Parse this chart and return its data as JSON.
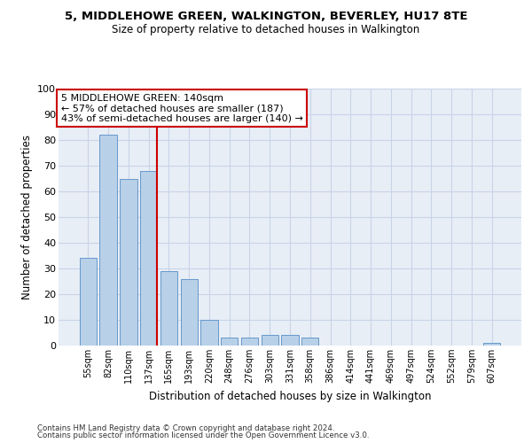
{
  "title": "5, MIDDLEHOWE GREEN, WALKINGTON, BEVERLEY, HU17 8TE",
  "subtitle": "Size of property relative to detached houses in Walkington",
  "xlabel": "Distribution of detached houses by size in Walkington",
  "ylabel": "Number of detached properties",
  "bar_labels": [
    "55sqm",
    "82sqm",
    "110sqm",
    "137sqm",
    "165sqm",
    "193sqm",
    "220sqm",
    "248sqm",
    "276sqm",
    "303sqm",
    "331sqm",
    "358sqm",
    "386sqm",
    "414sqm",
    "441sqm",
    "469sqm",
    "497sqm",
    "524sqm",
    "552sqm",
    "579sqm",
    "607sqm"
  ],
  "bar_values": [
    34,
    82,
    65,
    68,
    29,
    26,
    10,
    3,
    3,
    4,
    4,
    3,
    0,
    0,
    0,
    0,
    0,
    0,
    0,
    0,
    1
  ],
  "bar_color": "#b8d0e8",
  "bar_edge_color": "#6699cc",
  "vline_color": "#cc0000",
  "annotation_text": "5 MIDDLEHOWE GREEN: 140sqm\n← 57% of detached houses are smaller (187)\n43% of semi-detached houses are larger (140) →",
  "annotation_box_color": "#ffffff",
  "annotation_box_edge_color": "#cc0000",
  "ylim": [
    0,
    100
  ],
  "yticks": [
    0,
    10,
    20,
    30,
    40,
    50,
    60,
    70,
    80,
    90,
    100
  ],
  "grid_color": "#c8d4e8",
  "background_color": "#e8eef6",
  "footer_line1": "Contains HM Land Registry data © Crown copyright and database right 2024.",
  "footer_line2": "Contains public sector information licensed under the Open Government Licence v3.0."
}
